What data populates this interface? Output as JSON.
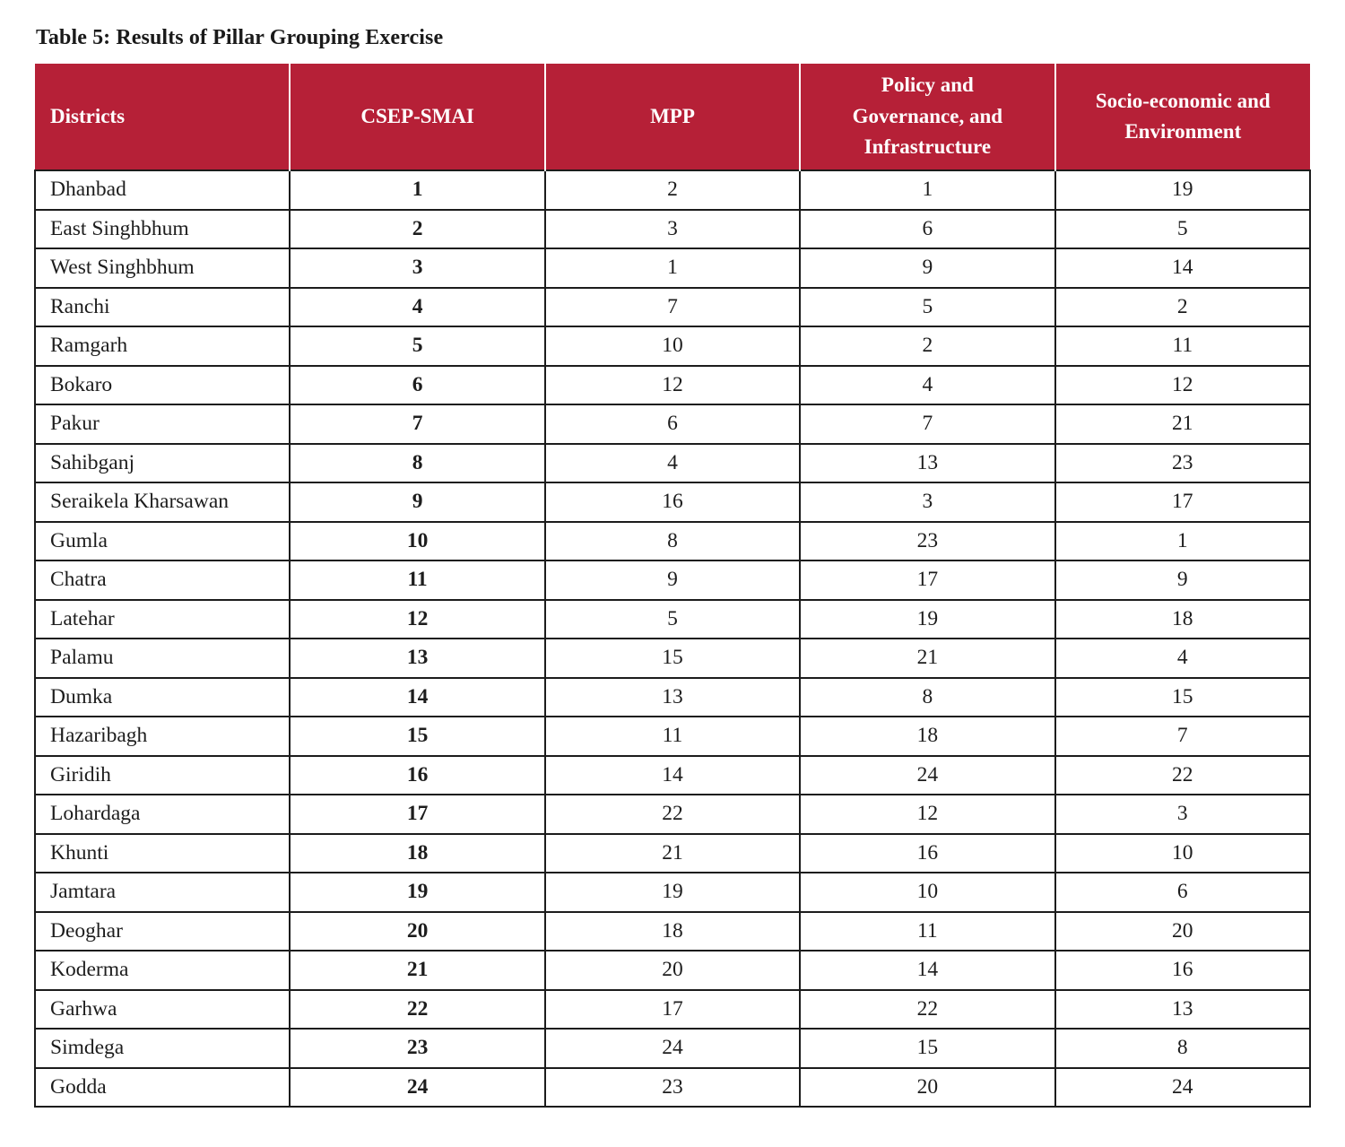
{
  "title": "Table 5: Results of Pillar Grouping Exercise",
  "colors": {
    "header_bg": "#B62037",
    "header_text": "#FFFFFF",
    "grid_border": "#1C1C1C",
    "body_text": "#1D1D1D"
  },
  "table": {
    "columns": [
      "Districts",
      "CSEP-SMAI",
      "MPP",
      "Policy and Governance, and Infrastructure",
      "Socio-economic and Environment"
    ],
    "rows": [
      [
        "Dhanbad",
        "1",
        "2",
        "1",
        "19"
      ],
      [
        "East Singhbhum",
        "2",
        "3",
        "6",
        "5"
      ],
      [
        "West Singhbhum",
        "3",
        "1",
        "9",
        "14"
      ],
      [
        "Ranchi",
        "4",
        "7",
        "5",
        "2"
      ],
      [
        "Ramgarh",
        "5",
        "10",
        "2",
        "11"
      ],
      [
        "Bokaro",
        "6",
        "12",
        "4",
        "12"
      ],
      [
        "Pakur",
        "7",
        "6",
        "7",
        "21"
      ],
      [
        "Sahibganj",
        "8",
        "4",
        "13",
        "23"
      ],
      [
        "Seraikela Kharsawan",
        "9",
        "16",
        "3",
        "17"
      ],
      [
        "Gumla",
        "10",
        "8",
        "23",
        "1"
      ],
      [
        "Chatra",
        "11",
        "9",
        "17",
        "9"
      ],
      [
        "Latehar",
        "12",
        "5",
        "19",
        "18"
      ],
      [
        "Palamu",
        "13",
        "15",
        "21",
        "4"
      ],
      [
        "Dumka",
        "14",
        "13",
        "8",
        "15"
      ],
      [
        "Hazaribagh",
        "15",
        "11",
        "18",
        "7"
      ],
      [
        "Giridih",
        "16",
        "14",
        "24",
        "22"
      ],
      [
        "Lohardaga",
        "17",
        "22",
        "12",
        "3"
      ],
      [
        "Khunti",
        "18",
        "21",
        "16",
        "10"
      ],
      [
        "Jamtara",
        "19",
        "19",
        "10",
        "6"
      ],
      [
        "Deoghar",
        "20",
        "18",
        "11",
        "20"
      ],
      [
        "Koderma",
        "21",
        "20",
        "14",
        "16"
      ],
      [
        "Garhwa",
        "22",
        "17",
        "22",
        "13"
      ],
      [
        "Simdega",
        "23",
        "24",
        "15",
        "8"
      ],
      [
        "Godda",
        "24",
        "23",
        "20",
        "24"
      ]
    ]
  }
}
